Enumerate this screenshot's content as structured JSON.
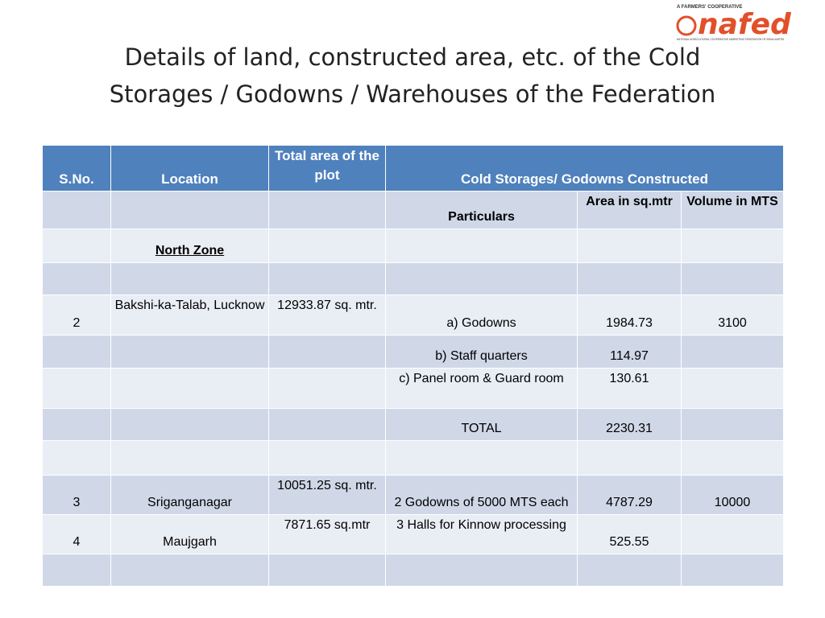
{
  "logo": {
    "tagline": "A FARMERS' COOPERATIVE",
    "name": "nafed",
    "fullname": "NATIONAL AGRICULTURAL COOPERATIVE MARKETING FEDERATION OF INDIA LIMITED"
  },
  "title": [
    "Details of land, constructed area, etc. of the Cold",
    "Storages / Godowns / Warehouses of the Federation"
  ],
  "table": {
    "header": [
      "S.No.",
      "Location",
      "Total area of the plot",
      "Cold Storages/ Godowns Constructed"
    ],
    "rows": [
      [
        null,
        null,
        null,
        "Particulars",
        "Area in sq.mtr",
        "Volume in MTS"
      ],
      [
        null,
        "North Zone",
        null,
        null,
        null,
        null
      ],
      [
        null,
        null,
        null,
        null,
        null,
        null
      ],
      [
        "2",
        "Bakshi-ka-Talab, Lucknow",
        "12933.87 sq. mtr.",
        "a) Godowns",
        "1984.73",
        "3100"
      ],
      [
        null,
        null,
        null,
        "b) Staff quarters",
        "114.97",
        null
      ],
      [
        null,
        null,
        null,
        "c) Panel room & Guard room",
        "130.61",
        null
      ],
      [
        null,
        null,
        null,
        "TOTAL",
        "2230.31",
        null
      ],
      [
        null,
        null,
        null,
        null,
        null,
        null
      ],
      [
        "3",
        "Sriganganagar",
        "10051.25 sq. mtr.",
        "2 Godowns of 5000 MTS each",
        "4787.29",
        "10000"
      ],
      [
        "4",
        "Maujgarh",
        "7871.65 sq.mtr",
        "3 Halls for Kinnow processing",
        "525.55",
        null
      ],
      [
        null,
        null,
        null,
        null,
        null,
        null
      ]
    ]
  }
}
